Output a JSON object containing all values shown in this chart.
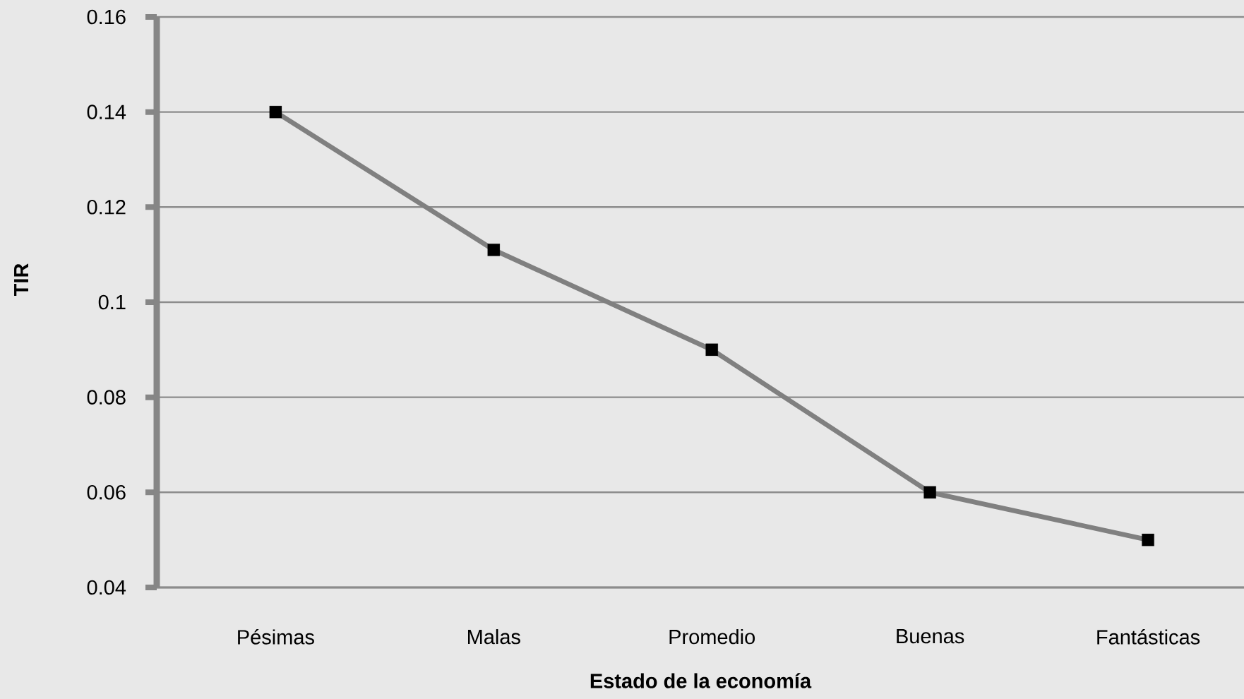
{
  "chart_data": {
    "type": "line",
    "xlabel": "Estado de la economía",
    "ylabel": "TIR",
    "categories": [
      "Pésimas",
      "Malas",
      "Promedio",
      "Buenas",
      "Fantásticas"
    ],
    "series": [
      {
        "color": "#808080",
        "values": [
          0.14,
          0.111,
          0.09,
          0.06,
          0.05
        ]
      }
    ],
    "ylim": [
      0.04,
      0.16
    ],
    "yticks": [
      0.04,
      0.06,
      0.08,
      0.1,
      0.12,
      0.14,
      0.16
    ],
    "grid": "y",
    "marker": "square",
    "line_style": "solid"
  }
}
